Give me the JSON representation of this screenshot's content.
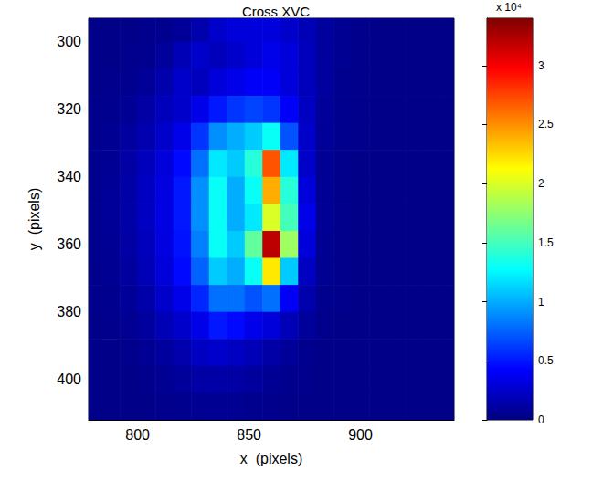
{
  "chart_data": {
    "type": "heatmap",
    "title": "Cross XVC",
    "x_label": "x  (pixels)",
    "y_label": "y  (pixels)",
    "xlim": [
      778,
      942
    ],
    "xticks": [
      800,
      850,
      900
    ],
    "ylim": [
      293,
      412
    ],
    "yticks": [
      300,
      320,
      340,
      360,
      380,
      400
    ],
    "grid": false,
    "heatmap": {
      "x": [
        780,
        788,
        796,
        804,
        812,
        820,
        828,
        836,
        844,
        852,
        860,
        868,
        876,
        884,
        892,
        900,
        908,
        916,
        924,
        932,
        940
      ],
      "y": [
        296,
        304,
        312,
        320,
        328,
        336,
        344,
        352,
        360,
        368,
        376,
        384,
        392,
        400,
        408
      ],
      "values": [
        [
          300,
          300,
          300,
          400,
          500,
          800,
          1500,
          2500,
          3000,
          3000,
          3000,
          2500,
          1800,
          1000,
          600,
          400,
          300,
          300,
          300,
          300,
          300
        ],
        [
          300,
          300,
          400,
          500,
          900,
          1800,
          2500,
          2000,
          2500,
          3000,
          3500,
          3000,
          2000,
          1000,
          600,
          400,
          300,
          300,
          300,
          300,
          300
        ],
        [
          300,
          400,
          500,
          800,
          1500,
          2500,
          2000,
          3000,
          3500,
          4000,
          4000,
          3000,
          2000,
          1000,
          500,
          400,
          300,
          300,
          300,
          300,
          300
        ],
        [
          400,
          500,
          700,
          1200,
          2000,
          2500,
          3500,
          5000,
          6000,
          6500,
          6000,
          4000,
          2200,
          900,
          500,
          400,
          300,
          300,
          300,
          300,
          300
        ],
        [
          400,
          600,
          1000,
          1600,
          2500,
          3500,
          6000,
          9000,
          10000,
          11000,
          13000,
          7000,
          2500,
          800,
          500,
          400,
          300,
          300,
          300,
          300,
          300
        ],
        [
          500,
          700,
          1200,
          2000,
          3000,
          4500,
          8000,
          12000,
          11000,
          14000,
          27000,
          12000,
          2500,
          700,
          400,
          300,
          300,
          300,
          300,
          300,
          300
        ],
        [
          500,
          800,
          1300,
          2200,
          3200,
          5000,
          9000,
          13000,
          10000,
          13000,
          24000,
          14000,
          3000,
          700,
          400,
          300,
          300,
          300,
          300,
          300,
          300
        ],
        [
          500,
          800,
          1300,
          2200,
          3300,
          5000,
          9000,
          13000,
          10000,
          12000,
          20000,
          15000,
          3500,
          700,
          400,
          300,
          300,
          300,
          300,
          300,
          300
        ],
        [
          500,
          700,
          1200,
          2000,
          3200,
          4800,
          8500,
          13000,
          11000,
          16000,
          32000,
          18000,
          3000,
          600,
          400,
          300,
          300,
          300,
          300,
          300,
          300
        ],
        [
          400,
          600,
          1000,
          1800,
          3000,
          4500,
          7500,
          11000,
          10000,
          13000,
          22000,
          11000,
          2200,
          600,
          400,
          300,
          300,
          300,
          300,
          300,
          300
        ],
        [
          400,
          500,
          800,
          1400,
          2500,
          3500,
          5500,
          8000,
          8000,
          7000,
          8000,
          4000,
          1500,
          500,
          400,
          300,
          300,
          300,
          300,
          300,
          300
        ],
        [
          300,
          400,
          600,
          1000,
          1800,
          2500,
          3500,
          5000,
          4500,
          3500,
          3000,
          1800,
          900,
          400,
          300,
          300,
          300,
          300,
          300,
          300,
          300
        ],
        [
          300,
          300,
          400,
          700,
          1000,
          1500,
          2200,
          2500,
          2200,
          1800,
          1300,
          800,
          500,
          300,
          300,
          300,
          300,
          300,
          300,
          300,
          300
        ],
        [
          300,
          300,
          300,
          400,
          600,
          900,
          1200,
          1300,
          1200,
          1000,
          700,
          500,
          400,
          300,
          300,
          300,
          300,
          300,
          300,
          300,
          300
        ],
        [
          300,
          300,
          300,
          300,
          400,
          500,
          600,
          700,
          600,
          500,
          400,
          300,
          300,
          300,
          300,
          300,
          300,
          300,
          300,
          300,
          300
        ]
      ]
    },
    "colorbar": {
      "range": [
        0,
        34000
      ],
      "ticks": [
        0,
        {
          "value": 5000,
          "label": "0.5"
        },
        {
          "value": 10000,
          "label": "1"
        },
        {
          "value": 15000,
          "label": "1.5"
        },
        {
          "value": 20000,
          "label": "2"
        },
        {
          "value": 25000,
          "label": "2.5"
        },
        {
          "value": 30000,
          "label": "3"
        }
      ],
      "label": "x 10⁴"
    }
  }
}
